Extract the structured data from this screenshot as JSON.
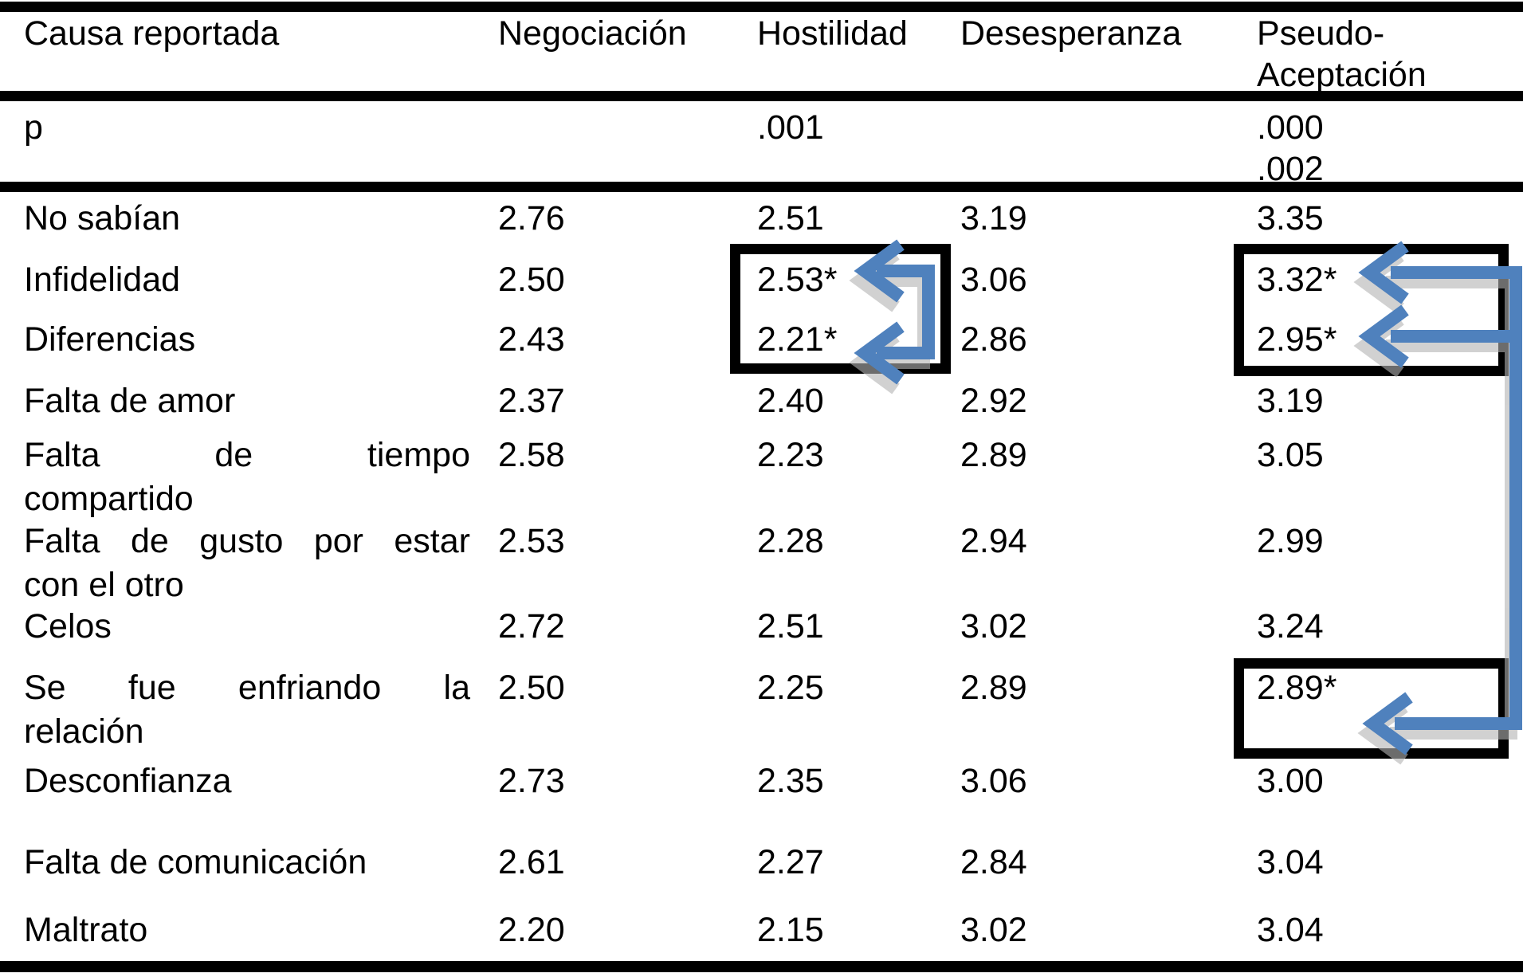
{
  "table": {
    "header": {
      "col0": "Causa reportada",
      "col1": "Negociación",
      "col2": "Hostilidad",
      "col3": "Desesperanza",
      "col4_line1": "Pseudo-",
      "col4_line2": "Aceptación"
    },
    "p_row": {
      "label": "p",
      "hostilidad": ".001",
      "pseudo_line1": ".000",
      "pseudo_line2": ".002"
    },
    "rows": [
      {
        "label_lines": [
          "No sabían"
        ],
        "values": [
          "2.76",
          "2.51",
          "3.19",
          "3.35"
        ]
      },
      {
        "label_lines": [
          "Infidelidad"
        ],
        "values": [
          "2.50",
          "2.53*",
          "3.06",
          "3.32*"
        ]
      },
      {
        "label_lines": [
          "Diferencias"
        ],
        "values": [
          "2.43",
          "2.21*",
          "2.86",
          "2.95*"
        ]
      },
      {
        "label_lines": [
          "Falta de amor"
        ],
        "values": [
          "2.37",
          "2.40",
          "2.92",
          "3.19"
        ]
      },
      {
        "label_lines": [
          "Falta de tiempo",
          "compartido"
        ],
        "values": [
          "2.58",
          "2.23",
          "2.89",
          "3.05"
        ]
      },
      {
        "label_lines": [
          "Falta de gusto por estar",
          "con el otro"
        ],
        "values": [
          "2.53",
          "2.28",
          "2.94",
          "2.99"
        ]
      },
      {
        "label_lines": [
          "Celos"
        ],
        "values": [
          "2.72",
          "2.51",
          "3.02",
          "3.24"
        ]
      },
      {
        "label_lines": [
          "Se fue enfriando la",
          "relación"
        ],
        "values": [
          "2.50",
          "2.25",
          "2.89",
          "2.89*"
        ]
      },
      {
        "label_lines": [
          "Desconfianza"
        ],
        "values": [
          "2.73",
          "2.35",
          "3.06",
          "3.00"
        ]
      },
      {
        "label_lines": [
          "Falta de comunicación"
        ],
        "values": [
          "2.61",
          "2.27",
          "2.84",
          "3.04"
        ]
      },
      {
        "label_lines": [
          "Maltrato"
        ],
        "values": [
          "2.20",
          "2.15",
          "3.02",
          "3.04"
        ]
      }
    ]
  },
  "annotations": {
    "arrow_color": "#4f81bd",
    "arrow_shadow_color": "#b4b4b4",
    "box_border_color": "#000000",
    "highlighted_cells": [
      "2.53*",
      "2.21*",
      "3.32*",
      "2.95*",
      "2.89*"
    ]
  }
}
